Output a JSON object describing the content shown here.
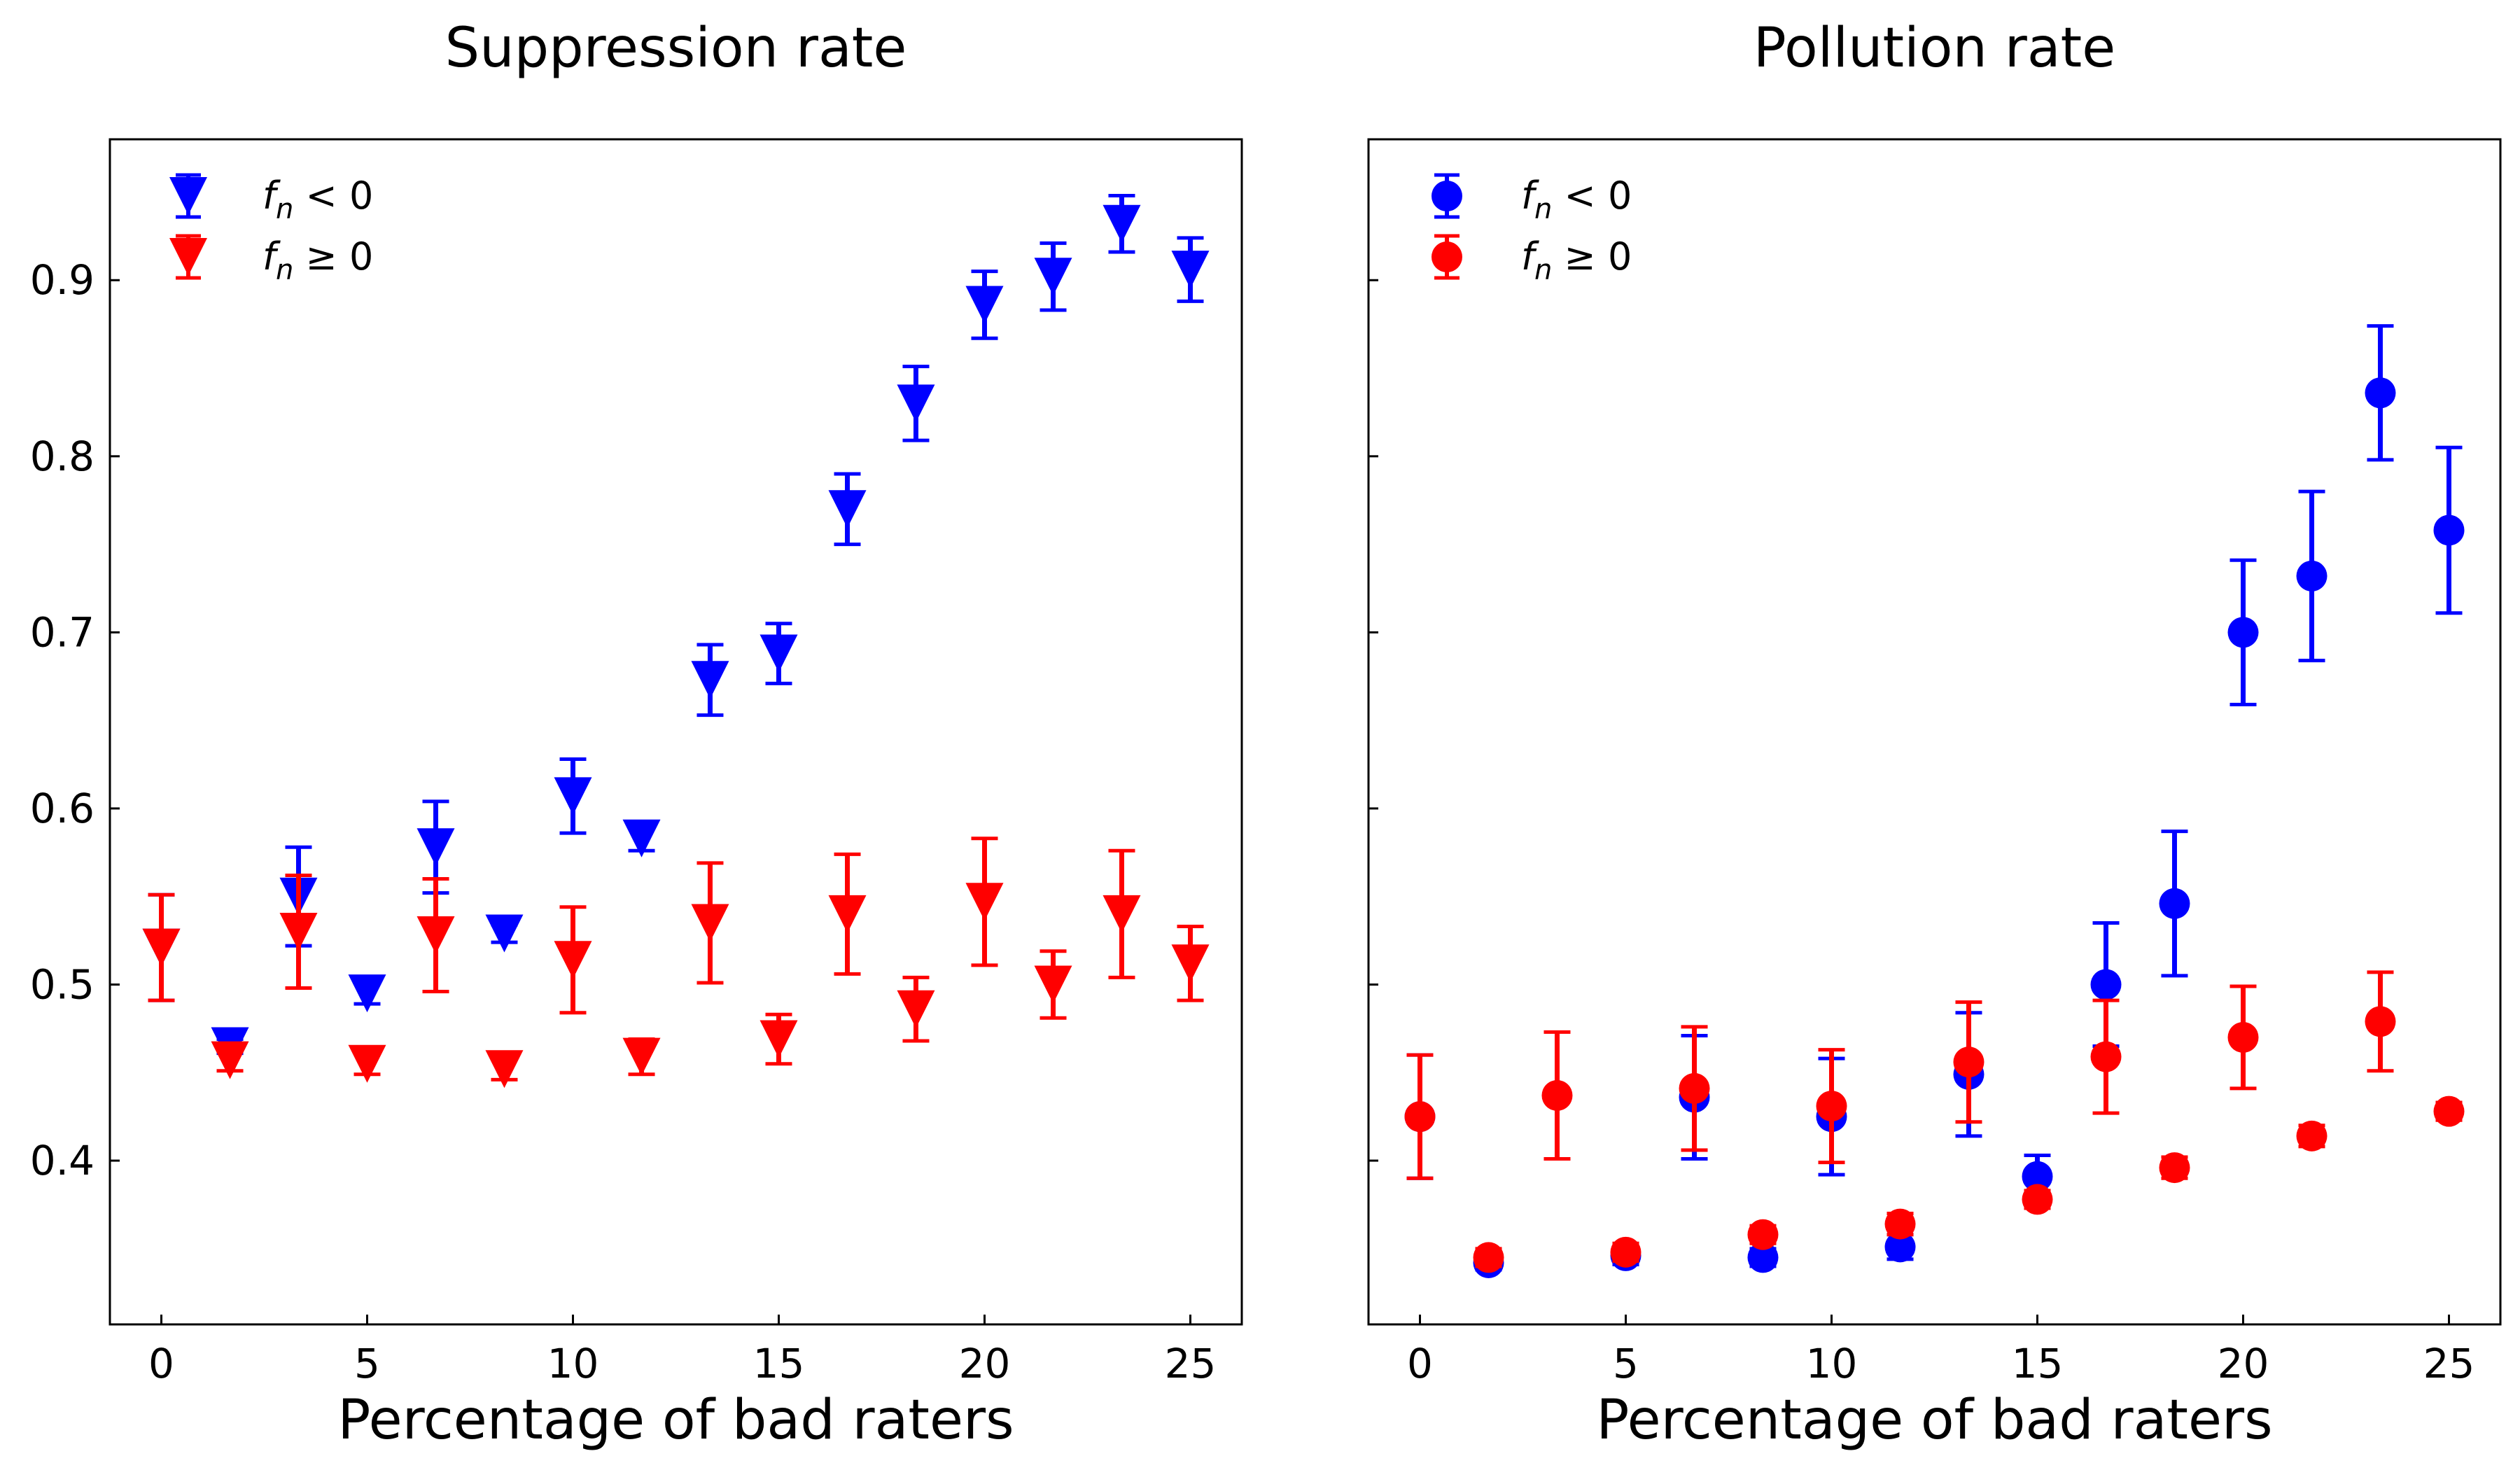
{
  "chart_data": [
    {
      "type": "scatter",
      "title": "Suppression rate",
      "xlabel": "Percentage of bad raters",
      "ylabel": "",
      "xlim": [
        -1.25,
        26.25
      ],
      "ylim": [
        0.307,
        0.98
      ],
      "xticks": [
        0,
        5,
        10,
        15,
        20,
        25
      ],
      "yticks": [
        0.4,
        0.5,
        0.6,
        0.7,
        0.8,
        0.9
      ],
      "ytick_labels": [
        "0.4",
        "0.5",
        "0.6",
        "0.7",
        "0.8",
        "0.9"
      ],
      "marker": "triangle-down",
      "legend_position": "top-left",
      "grid": false,
      "x": [
        0,
        1.667,
        3.333,
        5,
        6.667,
        8.333,
        10,
        11.667,
        13.333,
        15,
        16.667,
        18.333,
        20,
        21.667,
        23.333,
        25
      ],
      "series": [
        {
          "name": "f_n < 0",
          "color": "#0000ff",
          "values": [
            0.521,
            0.465,
            0.55,
            0.495,
            0.578,
            0.529,
            0.607,
            0.583,
            0.673,
            0.688,
            0.77,
            0.83,
            0.886,
            0.902,
            0.932,
            0.906
          ],
          "errors": [
            0.03,
            0.004,
            0.028,
            0.006,
            0.026,
            0.005,
            0.021,
            0.007,
            0.02,
            0.017,
            0.02,
            0.021,
            0.019,
            0.019,
            0.016,
            0.018
          ]
        },
        {
          "name": "f_n ≥ 0",
          "color": "#ff0000",
          "values": [
            0.521,
            0.457,
            0.53,
            0.455,
            0.528,
            0.452,
            0.514,
            0.459,
            0.535,
            0.469,
            0.54,
            0.486,
            0.547,
            0.5,
            0.54,
            0.512
          ],
          "errors": [
            0.03,
            0.006,
            0.032,
            0.006,
            0.032,
            0.006,
            0.03,
            0.01,
            0.034,
            0.014,
            0.034,
            0.018,
            0.036,
            0.019,
            0.036,
            0.021
          ]
        }
      ]
    },
    {
      "type": "scatter",
      "title": "Pollution rate",
      "xlabel": "Percentage of bad raters",
      "ylabel": "",
      "xlim": [
        -1.25,
        26.25
      ],
      "ylim": [
        0.307,
        0.98
      ],
      "xticks": [
        0,
        5,
        10,
        15,
        20,
        25
      ],
      "yticks": [
        0.4,
        0.5,
        0.6,
        0.7,
        0.8,
        0.9
      ],
      "ytick_labels": [],
      "marker": "circle",
      "legend_position": "top-left",
      "grid": false,
      "x": [
        0,
        1.667,
        3.333,
        5,
        6.667,
        8.333,
        10,
        11.667,
        13.333,
        15,
        16.667,
        18.333,
        20,
        21.667,
        23.333,
        25
      ],
      "series": [
        {
          "name": "f_n < 0",
          "color": "#0000ff",
          "values": [
            0.425,
            0.342,
            null,
            0.346,
            0.436,
            0.345,
            0.425,
            0.351,
            0.449,
            0.391,
            0.5,
            0.546,
            0.7,
            0.732,
            0.836,
            0.758
          ],
          "errors": [
            0.035,
            0.004,
            null,
            0.005,
            0.035,
            0.005,
            0.033,
            0.007,
            0.035,
            0.012,
            0.035,
            0.041,
            0.041,
            0.048,
            0.038,
            0.047
          ]
        },
        {
          "name": "f_n ≥ 0",
          "color": "#ff0000",
          "values": [
            0.425,
            0.345,
            0.437,
            0.348,
            0.441,
            0.358,
            0.431,
            0.364,
            0.456,
            0.378,
            0.459,
            0.396,
            0.47,
            0.414,
            0.479,
            0.428
          ],
          "errors": [
            0.035,
            0.005,
            0.036,
            0.005,
            0.035,
            0.005,
            0.032,
            0.006,
            0.034,
            0.005,
            0.032,
            0.006,
            0.029,
            0.006,
            0.028,
            0.005
          ]
        }
      ]
    }
  ],
  "legend_labels": {
    "neg": {
      "var": "f",
      "sub": "n",
      "rel": " < 0"
    },
    "pos": {
      "var": "f",
      "sub": "n",
      "rel": " ≥ 0"
    }
  }
}
